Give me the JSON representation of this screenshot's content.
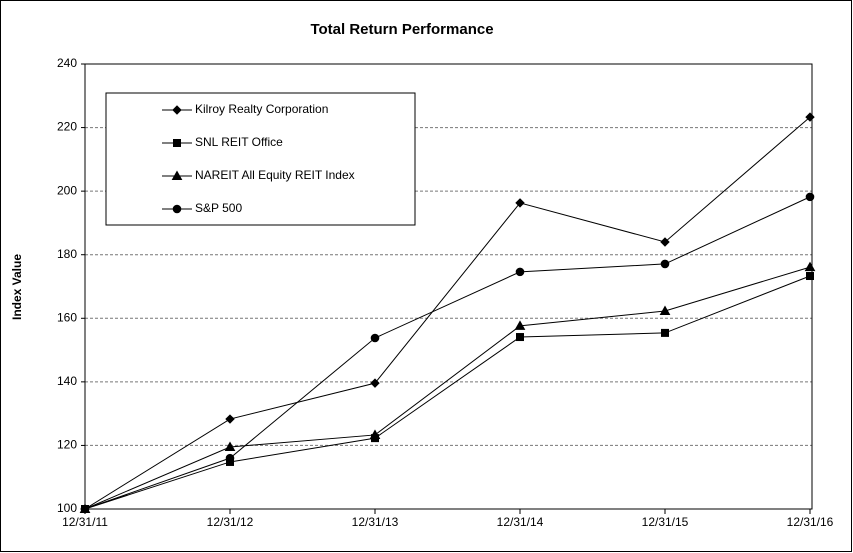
{
  "chart_data": {
    "type": "line",
    "title": "Total Return Performance",
    "y_label": "Index Value",
    "categories": [
      "12/31/11",
      "12/31/12",
      "12/31/13",
      "12/31/14",
      "12/31/15",
      "12/31/16"
    ],
    "series": [
      {
        "name": "Kilroy Realty Corporation",
        "color": "#000000",
        "marker": "diamond",
        "values": [
          100,
          128.3,
          139.6,
          196.3,
          184.0,
          223.3
        ]
      },
      {
        "name": "SNL REIT Office",
        "color": "#000000",
        "marker": "square",
        "values": [
          100,
          114.8,
          122.3,
          154.1,
          155.4,
          173.3
        ]
      },
      {
        "name": "NAREIT All Equity REIT Index",
        "color": "#000000",
        "marker": "triangle",
        "values": [
          100,
          119.5,
          123.3,
          157.6,
          162.3,
          176.1
        ]
      },
      {
        "name": "S&P 500",
        "color": "#000000",
        "marker": "circle",
        "values": [
          100,
          116.0,
          153.8,
          174.6,
          177.1,
          198.2
        ]
      }
    ],
    "ylim": [
      100,
      240
    ],
    "yticks": [
      100,
      120,
      140,
      160,
      180,
      200,
      220,
      240
    ],
    "grid": true,
    "legend": "upper left"
  }
}
